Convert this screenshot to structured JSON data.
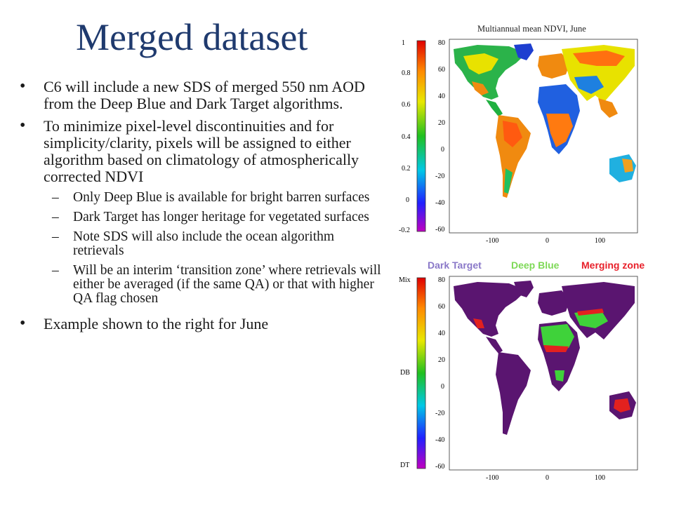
{
  "slide": {
    "title": "Merged dataset",
    "bullets": [
      {
        "text": "C6 will include a new SDS of merged 550 nm AOD from the Deep Blue and Dark Target algorithms."
      },
      {
        "text": "To minimize pixel-level discontinuities and for simplicity/clarity, pixels will be assigned to either algorithm based on climatology of atmospherically corrected NDVI"
      },
      {
        "text": "Example shown to the right for June"
      }
    ],
    "sub_bullets": [
      "Only Deep Blue is available for bright barren surfaces",
      "Dark Target has longer heritage for vegetated surfaces",
      "Note SDS will also include the ocean algorithm retrievals",
      "Will be an interim ‘transition zone’ where retrievals will either be averaged (if the same QA) or that with higher QA flag chosen"
    ],
    "bullet_glyph": "•",
    "dash_glyph": "–"
  },
  "top_map": {
    "title": "Multiannual mean NDVI, June",
    "colorbar_ticks": [
      "1",
      "0.8",
      "0.6",
      "0.4",
      "0.2",
      "0",
      "-0.2"
    ],
    "lat_ticks": [
      "80",
      "60",
      "40",
      "20",
      "0",
      "-20",
      "-40",
      "-60"
    ],
    "lon_ticks": [
      "-100",
      "0",
      "100"
    ]
  },
  "bottom_map": {
    "legend": [
      {
        "label": "Dark Target",
        "color": "#8a78c8"
      },
      {
        "label": "Deep Blue",
        "color": "#7ed957"
      },
      {
        "label": "Merging zone",
        "color": "#e8202a"
      }
    ],
    "colorbar_ticks": [
      "Mix",
      "DB",
      "DT"
    ],
    "lat_ticks": [
      "80",
      "60",
      "40",
      "20",
      "0",
      "-20",
      "-40",
      "-60"
    ],
    "lon_ticks": [
      "-100",
      "0",
      "100"
    ]
  },
  "colors": {
    "title": "#1f3a6e",
    "ocean": "#ffffff",
    "dt_land": "#5a1570",
    "db_land": "#3fd23a",
    "merge": "#e3211f"
  }
}
